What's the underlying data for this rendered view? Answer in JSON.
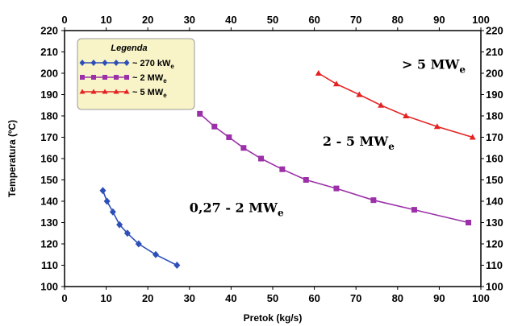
{
  "chart_data": {
    "type": "line",
    "xlabel": "Pretok (kg/s)",
    "ylabel": "Temperatura (ºC)",
    "xlim": [
      0,
      100
    ],
    "ylim": [
      100,
      220
    ],
    "x_ticks": [
      0,
      10,
      20,
      30,
      40,
      50,
      60,
      70,
      80,
      90,
      100
    ],
    "y_ticks": [
      100,
      110,
      120,
      130,
      140,
      150,
      160,
      170,
      180,
      190,
      200,
      210,
      220
    ],
    "grid": false,
    "legend": {
      "title": "Legenda",
      "position": "top-left",
      "entries": [
        {
          "prefix": "~ 270 kW",
          "sub": "e"
        },
        {
          "prefix": "~ 2 MW",
          "sub": "e"
        },
        {
          "prefix": "~ 5 MW",
          "sub": "e"
        }
      ]
    },
    "series": [
      {
        "color": "#2E4FB8",
        "marker": "diamond",
        "points": [
          [
            9.2,
            145
          ],
          [
            10.2,
            140
          ],
          [
            11.6,
            135
          ],
          [
            13.2,
            129
          ],
          [
            15.1,
            125
          ],
          [
            17.8,
            120
          ],
          [
            21.9,
            115
          ],
          [
            27.0,
            110
          ]
        ]
      },
      {
        "color": "#9B30A8",
        "marker": "square",
        "points": [
          [
            32.5,
            181
          ],
          [
            36.0,
            175
          ],
          [
            39.5,
            170
          ],
          [
            43.0,
            165
          ],
          [
            47.2,
            160
          ],
          [
            52.3,
            155
          ],
          [
            58.0,
            150
          ],
          [
            65.3,
            146
          ],
          [
            74.2,
            140.5
          ],
          [
            84.0,
            136
          ],
          [
            97.0,
            130
          ]
        ]
      },
      {
        "color": "#E52222",
        "marker": "triangle",
        "points": [
          [
            61.0,
            200
          ],
          [
            65.3,
            195
          ],
          [
            70.8,
            190
          ],
          [
            76.0,
            185
          ],
          [
            82.0,
            180
          ],
          [
            89.5,
            175
          ],
          [
            98.0,
            170
          ]
        ]
      }
    ],
    "annotations": [
      {
        "prefix": "0,27 - 2  MW",
        "sub": "e",
        "x": 30,
        "y": 135
      },
      {
        "prefix": "2 - 5 MW",
        "sub": "e",
        "x": 62,
        "y": 166
      },
      {
        "prefix": "> 5 MW",
        "sub": "e",
        "x": 81,
        "y": 202
      }
    ]
  }
}
